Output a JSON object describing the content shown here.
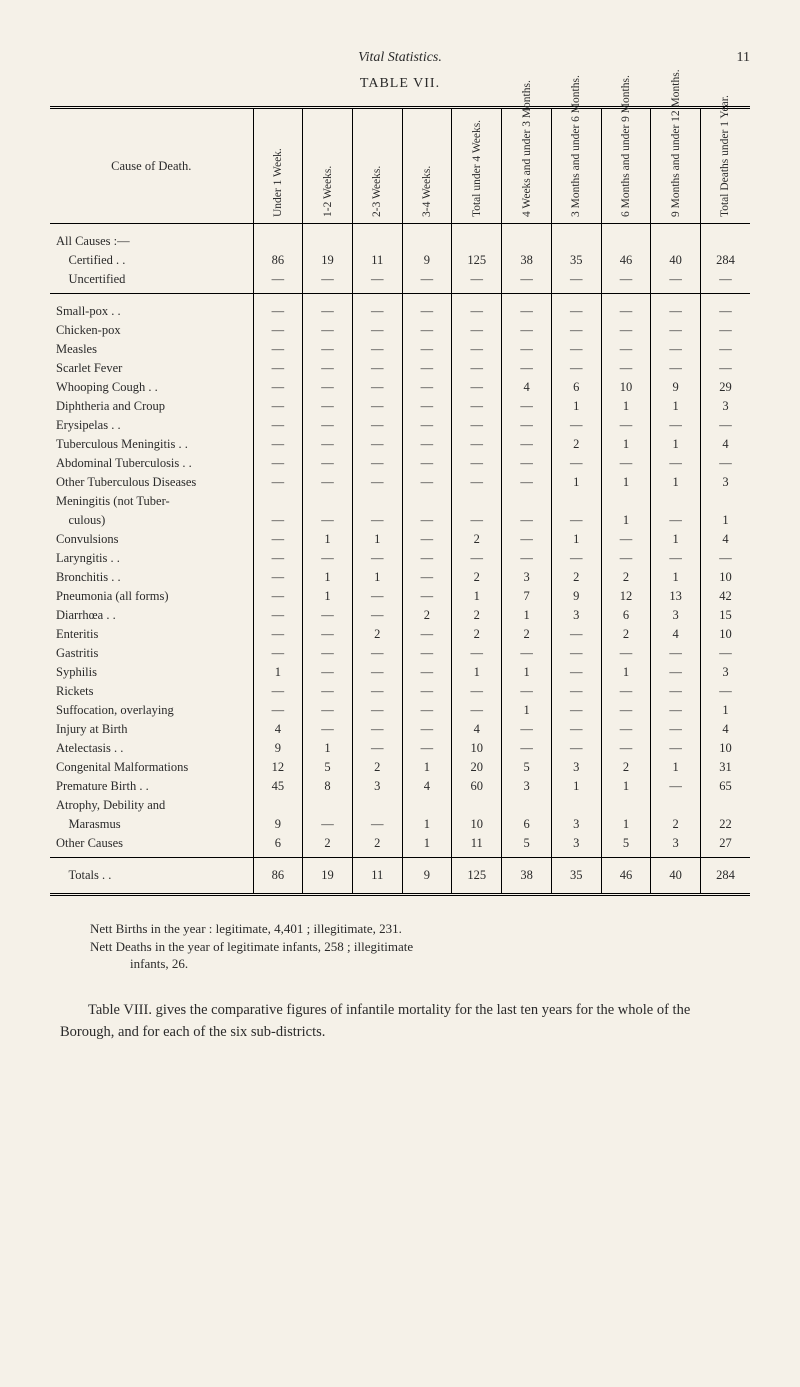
{
  "page": {
    "running_title": "Vital Statistics.",
    "page_number": "11",
    "table_title": "TABLE VII."
  },
  "columns": [
    "Cause of Death.",
    "Under 1 Week.",
    "1-2 Weeks.",
    "2-3 Weeks.",
    "3-4 Weeks.",
    "Total under 4 Weeks.",
    "4 Weeks and under 3 Months.",
    "3 Months and under 6 Months.",
    "6 Months and under 9 Months.",
    "9 Months and under 12 Months.",
    "Total Deaths under 1 Year."
  ],
  "all_causes": {
    "heading": "All Causes :—",
    "rows": [
      {
        "label": "Certified . .",
        "vals": [
          "86",
          "19",
          "11",
          "9",
          "125",
          "38",
          "35",
          "46",
          "40",
          "284"
        ]
      },
      {
        "label": "Uncertified",
        "vals": [
          "—",
          "—",
          "—",
          "—",
          "—",
          "—",
          "—",
          "—",
          "—",
          "—"
        ]
      }
    ]
  },
  "causes": [
    {
      "label": "Small-pox . .",
      "vals": [
        "—",
        "—",
        "—",
        "—",
        "—",
        "—",
        "—",
        "—",
        "—",
        "—"
      ]
    },
    {
      "label": "Chicken-pox",
      "vals": [
        "—",
        "—",
        "—",
        "—",
        "—",
        "—",
        "—",
        "—",
        "—",
        "—"
      ]
    },
    {
      "label": "Measles",
      "vals": [
        "—",
        "—",
        "—",
        "—",
        "—",
        "—",
        "—",
        "—",
        "—",
        "—"
      ]
    },
    {
      "label": "Scarlet Fever",
      "vals": [
        "—",
        "—",
        "—",
        "—",
        "—",
        "—",
        "—",
        "—",
        "—",
        "—"
      ]
    },
    {
      "label": "Whooping Cough . .",
      "vals": [
        "—",
        "—",
        "—",
        "—",
        "—",
        "4",
        "6",
        "10",
        "9",
        "29"
      ]
    },
    {
      "label": "Diphtheria and Croup",
      "vals": [
        "—",
        "—",
        "—",
        "—",
        "—",
        "—",
        "1",
        "1",
        "1",
        "3"
      ]
    },
    {
      "label": "Erysipelas . .",
      "vals": [
        "—",
        "—",
        "—",
        "—",
        "—",
        "—",
        "—",
        "—",
        "—",
        "—"
      ]
    },
    {
      "label": "Tuberculous Meningitis . .",
      "vals": [
        "—",
        "—",
        "—",
        "—",
        "—",
        "—",
        "2",
        "1",
        "1",
        "4"
      ]
    },
    {
      "label": "Abdominal Tuberculosis . .",
      "vals": [
        "—",
        "—",
        "—",
        "—",
        "—",
        "—",
        "—",
        "—",
        "—",
        "—"
      ]
    },
    {
      "label": "Other Tuberculous Diseases",
      "vals": [
        "—",
        "—",
        "—",
        "—",
        "—",
        "—",
        "1",
        "1",
        "1",
        "3"
      ]
    },
    {
      "label": "Meningitis (not Tuber-",
      "vals": [
        "",
        "",
        "",
        "",
        "",
        "",
        "",
        "",
        "",
        ""
      ]
    },
    {
      "label": "    culous)",
      "vals": [
        "—",
        "—",
        "—",
        "—",
        "—",
        "—",
        "—",
        "1",
        "—",
        "1"
      ]
    },
    {
      "label": "Convulsions",
      "vals": [
        "—",
        "1",
        "1",
        "—",
        "2",
        "—",
        "1",
        "—",
        "1",
        "4"
      ]
    },
    {
      "label": "Laryngitis . .",
      "vals": [
        "—",
        "—",
        "—",
        "—",
        "—",
        "—",
        "—",
        "—",
        "—",
        "—"
      ]
    },
    {
      "label": "Bronchitis . .",
      "vals": [
        "—",
        "1",
        "1",
        "—",
        "2",
        "3",
        "2",
        "2",
        "1",
        "10"
      ]
    },
    {
      "label": "Pneumonia (all forms)",
      "vals": [
        "—",
        "1",
        "—",
        "—",
        "1",
        "7",
        "9",
        "12",
        "13",
        "42"
      ]
    },
    {
      "label": "Diarrhœa . .",
      "vals": [
        "—",
        "—",
        "—",
        "2",
        "2",
        "1",
        "3",
        "6",
        "3",
        "15"
      ]
    },
    {
      "label": "Enteritis",
      "vals": [
        "—",
        "—",
        "2",
        "—",
        "2",
        "2",
        "—",
        "2",
        "4",
        "10"
      ]
    },
    {
      "label": "Gastritis",
      "vals": [
        "—",
        "—",
        "—",
        "—",
        "—",
        "—",
        "—",
        "—",
        "—",
        "—"
      ]
    },
    {
      "label": "Syphilis",
      "vals": [
        "1",
        "—",
        "—",
        "—",
        "1",
        "1",
        "—",
        "1",
        "—",
        "3"
      ]
    },
    {
      "label": "Rickets",
      "vals": [
        "—",
        "—",
        "—",
        "—",
        "—",
        "—",
        "—",
        "—",
        "—",
        "—"
      ]
    },
    {
      "label": "Suffocation, overlaying",
      "vals": [
        "—",
        "—",
        "—",
        "—",
        "—",
        "1",
        "—",
        "—",
        "—",
        "1"
      ]
    },
    {
      "label": "Injury at Birth",
      "vals": [
        "4",
        "—",
        "—",
        "—",
        "4",
        "—",
        "—",
        "—",
        "—",
        "4"
      ]
    },
    {
      "label": "Atelectasis . .",
      "vals": [
        "9",
        "1",
        "—",
        "—",
        "10",
        "—",
        "—",
        "—",
        "—",
        "10"
      ]
    },
    {
      "label": "Congenital Malformations",
      "vals": [
        "12",
        "5",
        "2",
        "1",
        "20",
        "5",
        "3",
        "2",
        "1",
        "31"
      ]
    },
    {
      "label": "Premature Birth . .",
      "vals": [
        "45",
        "8",
        "3",
        "4",
        "60",
        "3",
        "1",
        "1",
        "—",
        "65"
      ]
    },
    {
      "label": "Atrophy, Debility and",
      "vals": [
        "",
        "",
        "",
        "",
        "",
        "",
        "",
        "",
        "",
        ""
      ]
    },
    {
      "label": "    Marasmus",
      "vals": [
        "9",
        "—",
        "—",
        "1",
        "10",
        "6",
        "3",
        "1",
        "2",
        "22"
      ]
    },
    {
      "label": "Other Causes",
      "vals": [
        "6",
        "2",
        "2",
        "1",
        "11",
        "5",
        "3",
        "5",
        "3",
        "27"
      ]
    }
  ],
  "totals": {
    "label": "Totals . .",
    "vals": [
      "86",
      "19",
      "11",
      "9",
      "125",
      "38",
      "35",
      "46",
      "40",
      "284"
    ]
  },
  "footnote": {
    "line1": "Nett Births in the year : legitimate, 4,401 ; illegitimate, 231.",
    "line2": "Nett Deaths in the year of legitimate infants, 258 ; illegitimate",
    "line3": "infants, 26."
  },
  "bodytext": "Table VIII. gives the comparative figures of infantile mortality for the last ten years for the whole of the Borough, and for each of the six sub-districts."
}
